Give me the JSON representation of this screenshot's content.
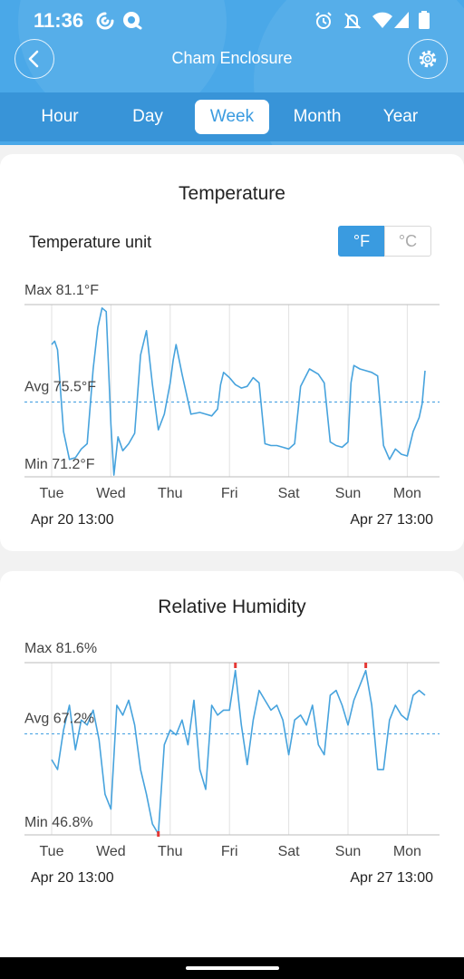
{
  "status_bar": {
    "time": "11:36",
    "icons": [
      "sync-icon",
      "app-icon",
      "alarm-icon",
      "bell-off-icon",
      "wifi-icon",
      "signal-icon",
      "battery-icon"
    ]
  },
  "header": {
    "title": "Cham Enclosure",
    "back_icon": "chevron-left-icon",
    "settings_icon": "gear-icon"
  },
  "tabs": [
    {
      "label": "Hour",
      "active": false
    },
    {
      "label": "Day",
      "active": false
    },
    {
      "label": "Week",
      "active": true
    },
    {
      "label": "Month",
      "active": false
    },
    {
      "label": "Year",
      "active": false
    }
  ],
  "colors": {
    "accent": "#3a9be0",
    "header": "#4aa8e8",
    "tabs": "#3894d8",
    "line": "#47a3dd",
    "alert": "#e53935"
  },
  "temperature": {
    "title": "Temperature",
    "unit_label": "Temperature unit",
    "unit_f": "°F",
    "unit_c": "°C",
    "selected_unit": "°F"
  },
  "humidity": {
    "title": "Relative Humidity"
  },
  "chart_data": [
    {
      "type": "line",
      "title": "Temperature",
      "max_label": "Max 81.1°F",
      "avg_label": "Avg 75.5°F",
      "min_label": "Min 71.2°F",
      "max": 81.1,
      "avg": 75.5,
      "min": 71.2,
      "ylim": [
        71.2,
        81.1
      ],
      "categories": [
        "Tue",
        "Wed",
        "Thu",
        "Fri",
        "Sat",
        "Sun",
        "Mon"
      ],
      "start_label": "Apr 20 13:00",
      "end_label": "Apr 27 13:00",
      "grid": true,
      "series": [
        {
          "x": [
            0,
            0.05,
            0.1,
            0.2,
            0.3,
            0.4,
            0.5,
            0.6,
            0.7,
            0.78,
            0.85,
            0.92,
            1.0,
            1.05,
            1.12,
            1.2,
            1.3,
            1.4,
            1.5,
            1.6,
            1.7,
            1.8,
            1.9,
            2.0,
            2.05,
            2.1,
            2.2,
            2.35,
            2.5,
            2.6,
            2.7,
            2.8,
            2.85,
            2.9,
            3.0,
            3.1,
            3.2,
            3.3,
            3.4,
            3.5,
            3.6,
            3.7,
            3.8,
            3.9,
            4.0,
            4.1,
            4.2,
            4.35,
            4.5,
            4.6,
            4.7,
            4.8,
            4.9,
            5.0,
            5.05,
            5.1,
            5.2,
            5.3,
            5.4,
            5.5,
            5.6,
            5.7,
            5.8,
            5.9,
            6.0,
            6.1,
            6.2,
            6.25,
            6.3
          ],
          "y": [
            78.8,
            79.0,
            78.5,
            73.8,
            72.2,
            72.3,
            72.8,
            73.1,
            77.4,
            79.8,
            80.9,
            80.7,
            74.2,
            71.3,
            73.5,
            72.7,
            73.1,
            73.7,
            78.2,
            79.6,
            76.5,
            73.9,
            74.8,
            76.6,
            77.9,
            78.8,
            77.1,
            74.8,
            74.9,
            74.8,
            74.7,
            75.1,
            76.5,
            77.2,
            76.9,
            76.5,
            76.3,
            76.4,
            76.9,
            76.6,
            73.1,
            73.0,
            73.0,
            72.9,
            72.8,
            73.1,
            76.4,
            77.4,
            77.1,
            76.6,
            73.2,
            73.0,
            72.9,
            73.2,
            76.6,
            77.6,
            77.4,
            77.3,
            77.2,
            77.0,
            73.0,
            72.2,
            72.8,
            72.5,
            72.4,
            73.8,
            74.6,
            75.4,
            77.3
          ]
        }
      ]
    },
    {
      "type": "line",
      "title": "Relative Humidity",
      "max_label": "Max 81.6%",
      "avg_label": "Avg 67.2%",
      "min_label": "Min 46.8%",
      "max": 81.6,
      "avg": 67.2,
      "min": 46.8,
      "ylim": [
        46.8,
        81.6
      ],
      "categories": [
        "Tue",
        "Wed",
        "Thu",
        "Fri",
        "Sat",
        "Sun",
        "Mon"
      ],
      "start_label": "Apr 20 13:00",
      "end_label": "Apr 27 13:00",
      "grid": true,
      "series": [
        {
          "x": [
            0,
            0.1,
            0.2,
            0.3,
            0.4,
            0.5,
            0.6,
            0.7,
            0.8,
            0.9,
            1.0,
            1.1,
            1.2,
            1.3,
            1.4,
            1.5,
            1.6,
            1.7,
            1.8,
            1.9,
            2.0,
            2.1,
            2.2,
            2.3,
            2.4,
            2.5,
            2.6,
            2.7,
            2.8,
            2.9,
            3.0,
            3.1,
            3.2,
            3.3,
            3.4,
            3.5,
            3.6,
            3.7,
            3.8,
            3.9,
            4.0,
            4.1,
            4.2,
            4.3,
            4.4,
            4.5,
            4.6,
            4.7,
            4.8,
            4.9,
            5.0,
            5.1,
            5.2,
            5.3,
            5.4,
            5.5,
            5.6,
            5.7,
            5.8,
            5.9,
            6.0,
            6.1,
            6.2,
            6.3
          ],
          "y": [
            62,
            60,
            68,
            73,
            64,
            70,
            69,
            72,
            66,
            55,
            52,
            73,
            71,
            74,
            69,
            60,
            55,
            49,
            47,
            65,
            68,
            67,
            70,
            65,
            74,
            60,
            56,
            73,
            71,
            72,
            72,
            80,
            69,
            61,
            70,
            76,
            74,
            72,
            73,
            70,
            63,
            70,
            71,
            69,
            73,
            65,
            63,
            75,
            76,
            73,
            69,
            74,
            77,
            80,
            73,
            60,
            60,
            70,
            73,
            71,
            70,
            75,
            76,
            75
          ]
        }
      ]
    }
  ]
}
